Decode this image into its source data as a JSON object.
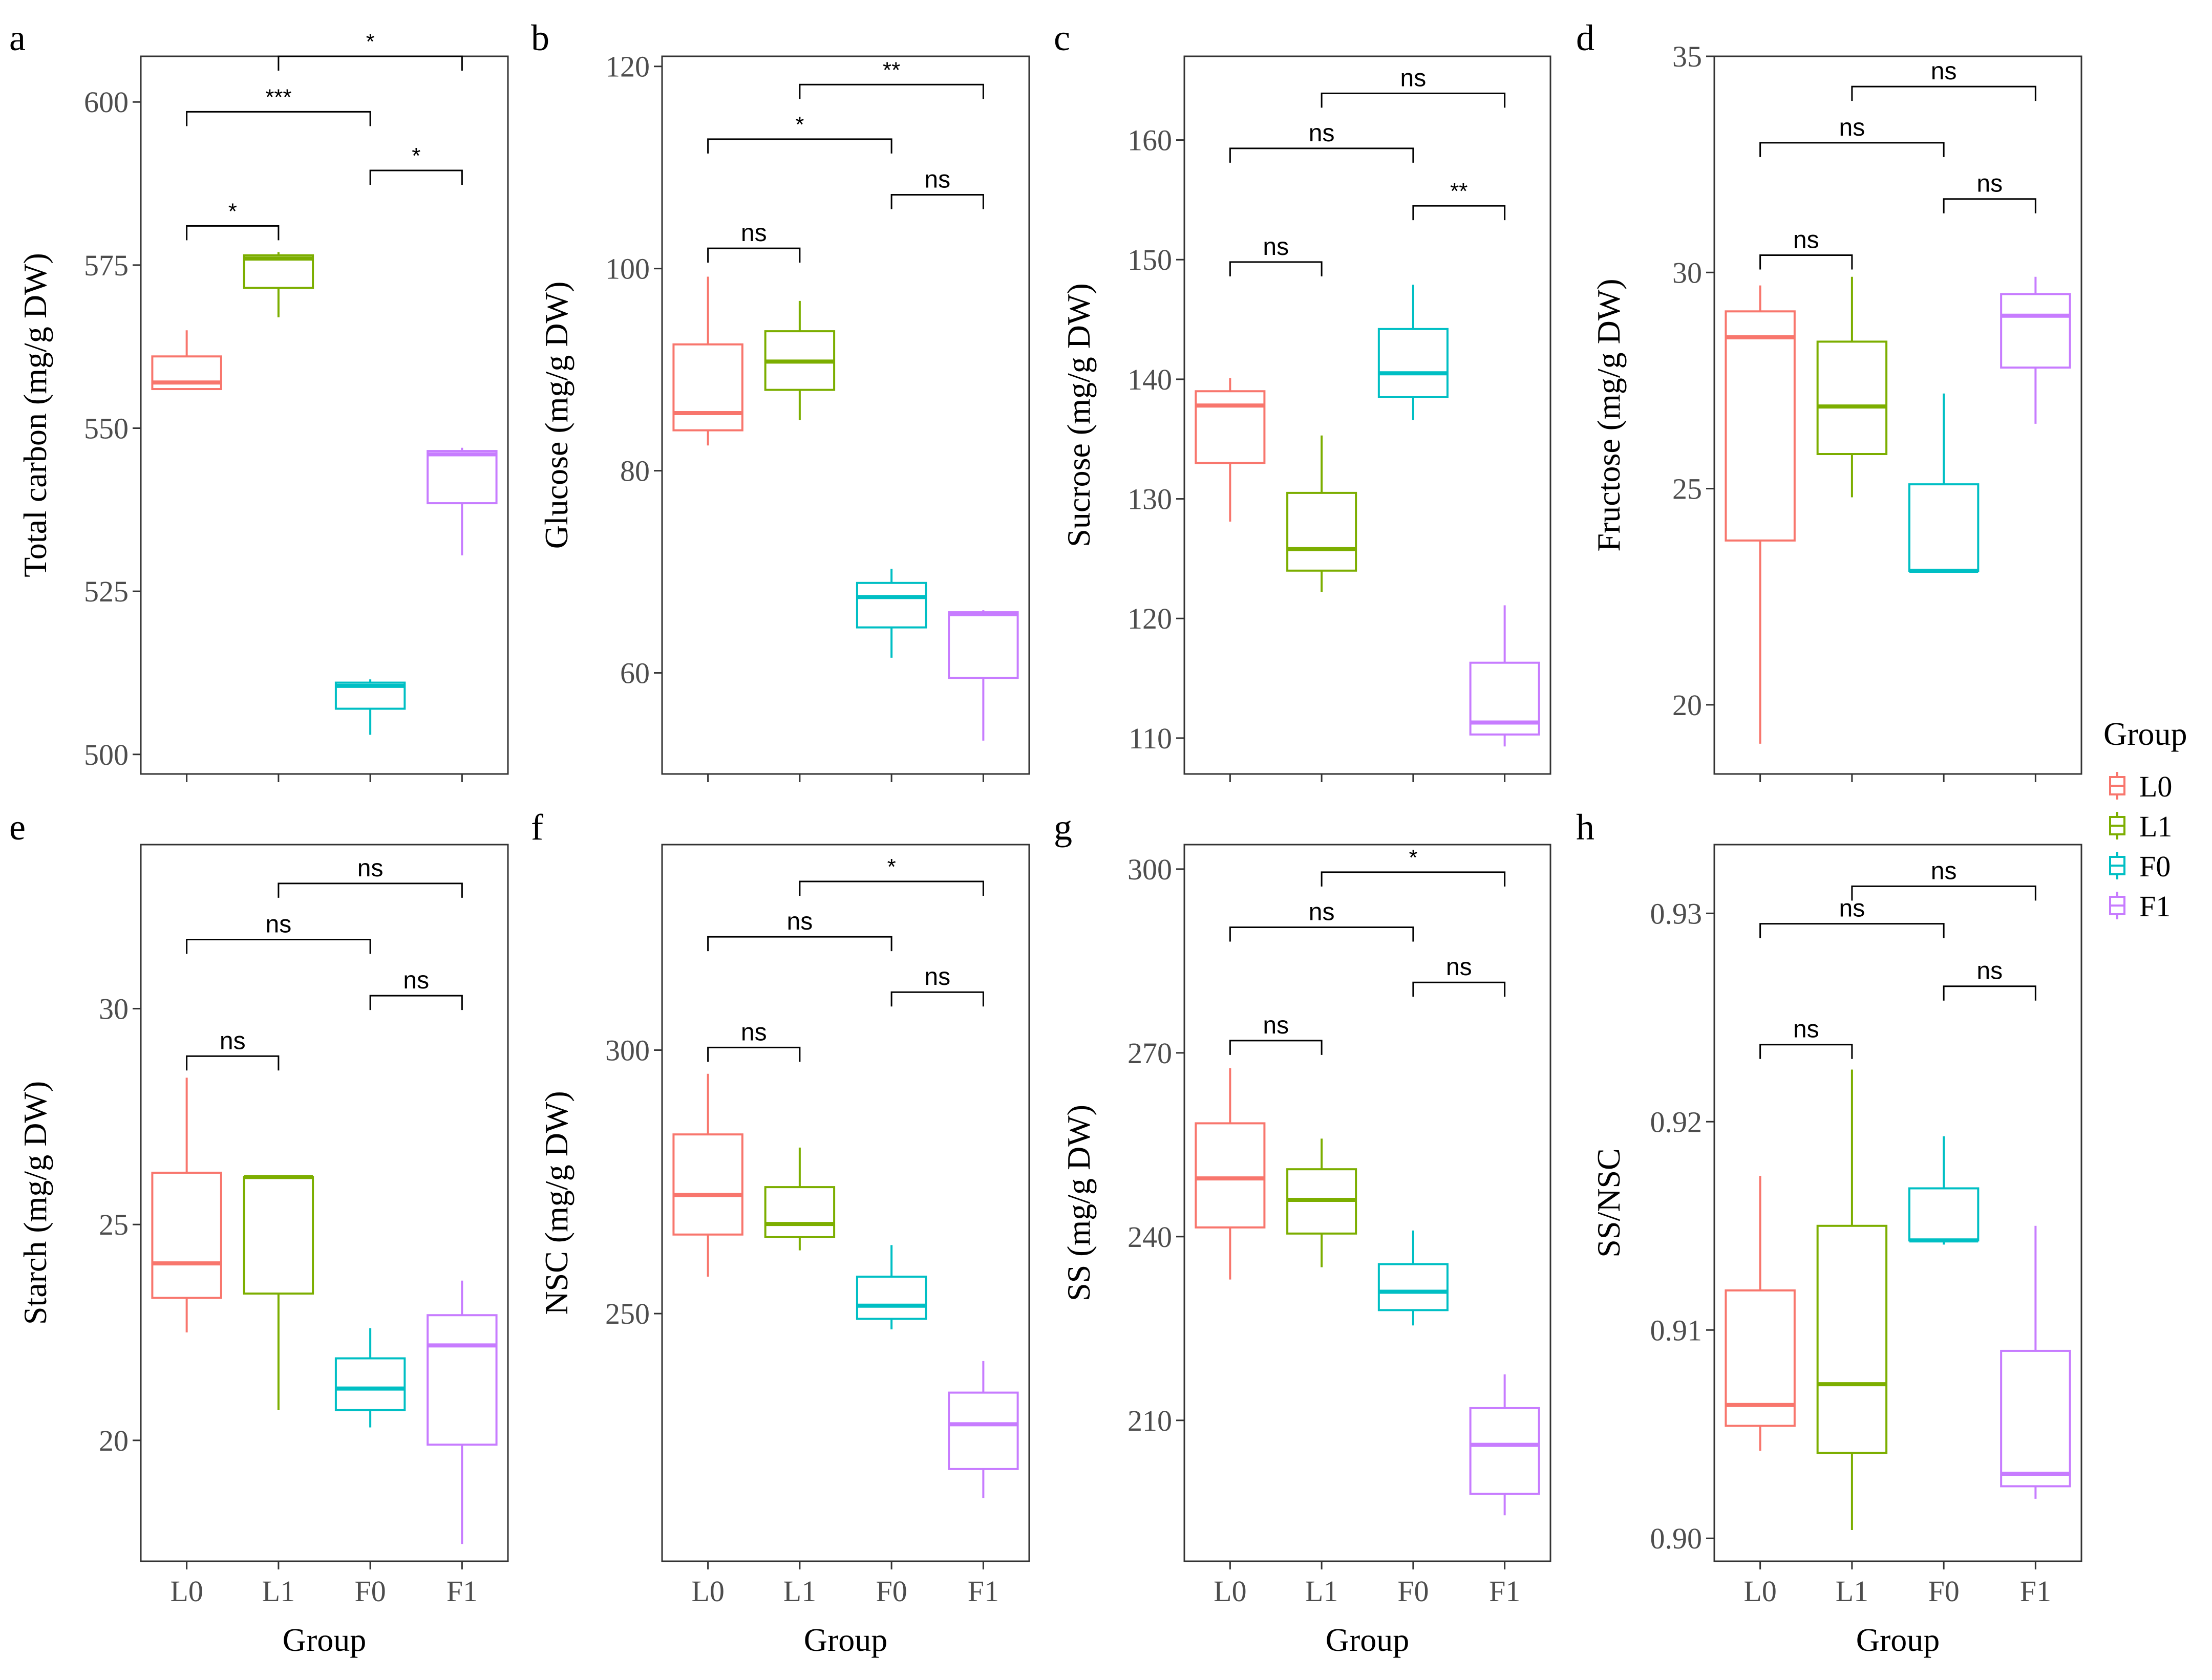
{
  "colors": {
    "L0": "#F8766D",
    "L1": "#7CAE00",
    "F0": "#00BFC4",
    "F1": "#C77CFF",
    "frame": "#333333",
    "bracket": "#000000"
  },
  "chart_data": [
    {
      "type": "box",
      "panel_label": "a",
      "ylabel": "Total carbon (mg/g DW)",
      "xlabel": "",
      "categories": [
        "L0",
        "L1",
        "F0",
        "F1"
      ],
      "show_x_ticks": false,
      "ylim": [
        497,
        607
      ],
      "yticks": [
        500,
        525,
        550,
        575,
        600
      ],
      "boxes": [
        {
          "group": "L0",
          "min": 556,
          "q1": 556,
          "median": 557,
          "q3": 561,
          "max": 565
        },
        {
          "group": "L1",
          "min": 567,
          "q1": 571.5,
          "median": 576,
          "q3": 576.5,
          "max": 577
        },
        {
          "group": "F0",
          "min": 503,
          "q1": 507,
          "median": 510.5,
          "q3": 511,
          "max": 511.5
        },
        {
          "group": "F1",
          "min": 530.5,
          "q1": 538.5,
          "median": 546,
          "q3": 546.5,
          "max": 547
        }
      ],
      "brackets": [
        {
          "from": "L0",
          "to": "L1",
          "y": 581,
          "label": "*"
        },
        {
          "from": "F0",
          "to": "F1",
          "y": 589.5,
          "label": "*"
        },
        {
          "from": "L0",
          "to": "F0",
          "y": 598.5,
          "label": "***"
        },
        {
          "from": "L1",
          "to": "F1",
          "y": 607,
          "label": "*"
        }
      ]
    },
    {
      "type": "box",
      "panel_label": "b",
      "ylabel": "Glucose (mg/g DW)",
      "xlabel": "",
      "categories": [
        "L0",
        "L1",
        "F0",
        "F1"
      ],
      "show_x_ticks": false,
      "ylim": [
        50,
        121
      ],
      "yticks": [
        60,
        80,
        100,
        120
      ],
      "boxes": [
        {
          "group": "L0",
          "min": 82.5,
          "q1": 84,
          "median": 85.7,
          "q3": 92.5,
          "max": 99.2
        },
        {
          "group": "L1",
          "min": 85,
          "q1": 88,
          "median": 90.8,
          "q3": 93.8,
          "max": 96.8
        },
        {
          "group": "F0",
          "min": 61.5,
          "q1": 64.5,
          "median": 67.5,
          "q3": 68.9,
          "max": 70.3
        },
        {
          "group": "F1",
          "min": 53.3,
          "q1": 59.5,
          "median": 65.8,
          "q3": 66,
          "max": 66.2
        }
      ],
      "brackets": [
        {
          "from": "L0",
          "to": "L1",
          "y": 102,
          "label": "ns"
        },
        {
          "from": "F0",
          "to": "F1",
          "y": 107.3,
          "label": "ns"
        },
        {
          "from": "L0",
          "to": "F0",
          "y": 112.8,
          "label": "*"
        },
        {
          "from": "L1",
          "to": "F1",
          "y": 118.2,
          "label": "**"
        }
      ]
    },
    {
      "type": "box",
      "panel_label": "c",
      "ylabel": "Sucrose (mg/g DW)",
      "xlabel": "",
      "categories": [
        "L0",
        "L1",
        "F0",
        "F1"
      ],
      "show_x_ticks": false,
      "ylim": [
        107,
        167
      ],
      "yticks": [
        110,
        120,
        130,
        140,
        150,
        160
      ],
      "boxes": [
        {
          "group": "L0",
          "min": 128.1,
          "q1": 133,
          "median": 137.8,
          "q3": 139,
          "max": 140.1
        },
        {
          "group": "L1",
          "min": 122.2,
          "q1": 124,
          "median": 125.8,
          "q3": 130.5,
          "max": 135.3
        },
        {
          "group": "F0",
          "min": 136.6,
          "q1": 138.5,
          "median": 140.5,
          "q3": 144.2,
          "max": 147.9
        },
        {
          "group": "F1",
          "min": 109.3,
          "q1": 110.3,
          "median": 111.3,
          "q3": 116.3,
          "max": 121.1
        }
      ],
      "brackets": [
        {
          "from": "L0",
          "to": "L1",
          "y": 149.8,
          "label": "ns"
        },
        {
          "from": "F0",
          "to": "F1",
          "y": 154.5,
          "label": "**"
        },
        {
          "from": "L0",
          "to": "F0",
          "y": 159.3,
          "label": "ns"
        },
        {
          "from": "L1",
          "to": "F1",
          "y": 163.9,
          "label": "ns"
        }
      ]
    },
    {
      "type": "box",
      "panel_label": "d",
      "ylabel": "Fructose (mg/g DW)",
      "xlabel": "",
      "categories": [
        "L0",
        "L1",
        "F0",
        "F1"
      ],
      "show_x_ticks": false,
      "ylim": [
        18.4,
        35
      ],
      "yticks": [
        20,
        25,
        30,
        35
      ],
      "boxes": [
        {
          "group": "L0",
          "min": 19.1,
          "q1": 23.8,
          "median": 28.5,
          "q3": 29.1,
          "max": 29.7
        },
        {
          "group": "L1",
          "min": 24.8,
          "q1": 25.8,
          "median": 26.9,
          "q3": 28.4,
          "max": 29.9
        },
        {
          "group": "F0",
          "min": 23.1,
          "q1": 23.1,
          "median": 23.1,
          "q3": 25.1,
          "max": 27.2
        },
        {
          "group": "F1",
          "min": 26.5,
          "q1": 27.8,
          "median": 29.0,
          "q3": 29.5,
          "max": 29.9
        }
      ],
      "brackets": [
        {
          "from": "L0",
          "to": "L1",
          "y": 30.4,
          "label": "ns"
        },
        {
          "from": "F0",
          "to": "F1",
          "y": 31.7,
          "label": "ns"
        },
        {
          "from": "L0",
          "to": "F0",
          "y": 33.0,
          "label": "ns"
        },
        {
          "from": "L1",
          "to": "F1",
          "y": 34.3,
          "label": "ns"
        }
      ]
    },
    {
      "type": "box",
      "panel_label": "e",
      "ylabel": "Starch (mg/g DW)",
      "xlabel": "Group",
      "categories": [
        "L0",
        "L1",
        "F0",
        "F1"
      ],
      "show_x_ticks": true,
      "ylim": [
        17.2,
        33.8
      ],
      "yticks": [
        20,
        25,
        30
      ],
      "boxes": [
        {
          "group": "L0",
          "min": 22.5,
          "q1": 23.3,
          "median": 24.1,
          "q3": 26.2,
          "max": 28.4
        },
        {
          "group": "L1",
          "min": 20.7,
          "q1": 23.4,
          "median": 26.1,
          "q3": 26.1,
          "max": 26.1
        },
        {
          "group": "F0",
          "min": 20.3,
          "q1": 20.7,
          "median": 21.2,
          "q3": 21.9,
          "max": 22.6
        },
        {
          "group": "F1",
          "min": 17.6,
          "q1": 19.9,
          "median": 22.2,
          "q3": 22.9,
          "max": 23.7
        }
      ],
      "brackets": [
        {
          "from": "L0",
          "to": "L1",
          "y": 28.9,
          "label": "ns"
        },
        {
          "from": "F0",
          "to": "F1",
          "y": 30.3,
          "label": "ns"
        },
        {
          "from": "L0",
          "to": "F0",
          "y": 31.6,
          "label": "ns"
        },
        {
          "from": "L1",
          "to": "F1",
          "y": 32.9,
          "label": "ns"
        }
      ]
    },
    {
      "type": "box",
      "panel_label": "f",
      "ylabel": "NSC (mg/g DW)",
      "xlabel": "Group",
      "categories": [
        "L0",
        "L1",
        "F0",
        "F1"
      ],
      "show_x_ticks": true,
      "ylim": [
        203,
        339
      ],
      "yticks": [
        250,
        300
      ],
      "boxes": [
        {
          "group": "L0",
          "min": 257,
          "q1": 265,
          "median": 272.5,
          "q3": 284,
          "max": 295.5
        },
        {
          "group": "L1",
          "min": 262,
          "q1": 264.5,
          "median": 267,
          "q3": 274,
          "max": 281.5
        },
        {
          "group": "F0",
          "min": 247,
          "q1": 249,
          "median": 251.5,
          "q3": 257,
          "max": 263
        },
        {
          "group": "F1",
          "min": 215,
          "q1": 220.5,
          "median": 229,
          "q3": 235,
          "max": 241
        }
      ],
      "brackets": [
        {
          "from": "L0",
          "to": "L1",
          "y": 300.5,
          "label": "ns"
        },
        {
          "from": "F0",
          "to": "F1",
          "y": 311,
          "label": "ns"
        },
        {
          "from": "L0",
          "to": "F0",
          "y": 321.5,
          "label": "ns"
        },
        {
          "from": "L1",
          "to": "F1",
          "y": 332,
          "label": "*"
        }
      ]
    },
    {
      "type": "box",
      "panel_label": "g",
      "ylabel": "SS (mg/g DW)",
      "xlabel": "Group",
      "categories": [
        "L0",
        "L1",
        "F0",
        "F1"
      ],
      "show_x_ticks": true,
      "ylim": [
        187,
        304
      ],
      "yticks": [
        210,
        240,
        270,
        300
      ],
      "boxes": [
        {
          "group": "L0",
          "min": 233,
          "q1": 241.5,
          "median": 249.5,
          "q3": 258.5,
          "max": 267.5
        },
        {
          "group": "L1",
          "min": 235,
          "q1": 240.5,
          "median": 246,
          "q3": 251,
          "max": 256
        },
        {
          "group": "F0",
          "min": 225.5,
          "q1": 228,
          "median": 231,
          "q3": 235.5,
          "max": 241
        },
        {
          "group": "F1",
          "min": 194.5,
          "q1": 198,
          "median": 206,
          "q3": 212,
          "max": 217.5
        }
      ],
      "brackets": [
        {
          "from": "L0",
          "to": "L1",
          "y": 272,
          "label": "ns"
        },
        {
          "from": "F0",
          "to": "F1",
          "y": 281.5,
          "label": "ns"
        },
        {
          "from": "L0",
          "to": "F0",
          "y": 290.5,
          "label": "ns"
        },
        {
          "from": "L1",
          "to": "F1",
          "y": 299.5,
          "label": "*"
        }
      ]
    },
    {
      "type": "box",
      "panel_label": "h",
      "ylabel": "SS/NSC",
      "xlabel": "Group",
      "categories": [
        "L0",
        "L1",
        "F0",
        "F1"
      ],
      "show_x_ticks": true,
      "ylim": [
        0.8989,
        0.9333
      ],
      "yticks": [
        0.9,
        0.91,
        0.92,
        0.93
      ],
      "ytick_labels": [
        "0.90",
        "0.91",
        "0.92",
        "0.93"
      ],
      "boxes": [
        {
          "group": "L0",
          "min": 0.9042,
          "q1": 0.9054,
          "median": 0.9064,
          "q3": 0.9119,
          "max": 0.9174
        },
        {
          "group": "L1",
          "min": 0.9004,
          "q1": 0.9041,
          "median": 0.9074,
          "q3": 0.915,
          "max": 0.9225
        },
        {
          "group": "F0",
          "min": 0.9141,
          "q1": 0.9143,
          "median": 0.9143,
          "q3": 0.9168,
          "max": 0.9193
        },
        {
          "group": "F1",
          "min": 0.9019,
          "q1": 0.9025,
          "median": 0.9031,
          "q3": 0.909,
          "max": 0.915
        }
      ],
      "brackets": [
        {
          "from": "L0",
          "to": "L1",
          "y": 0.9237,
          "label": "ns"
        },
        {
          "from": "F0",
          "to": "F1",
          "y": 0.9265,
          "label": "ns"
        },
        {
          "from": "L0",
          "to": "F0",
          "y": 0.9295,
          "label": "ns"
        },
        {
          "from": "L1",
          "to": "F1",
          "y": 0.9313,
          "label": "ns"
        }
      ]
    }
  ],
  "legend": {
    "title": "Group",
    "entries": [
      "L0",
      "L1",
      "F0",
      "F1"
    ]
  }
}
